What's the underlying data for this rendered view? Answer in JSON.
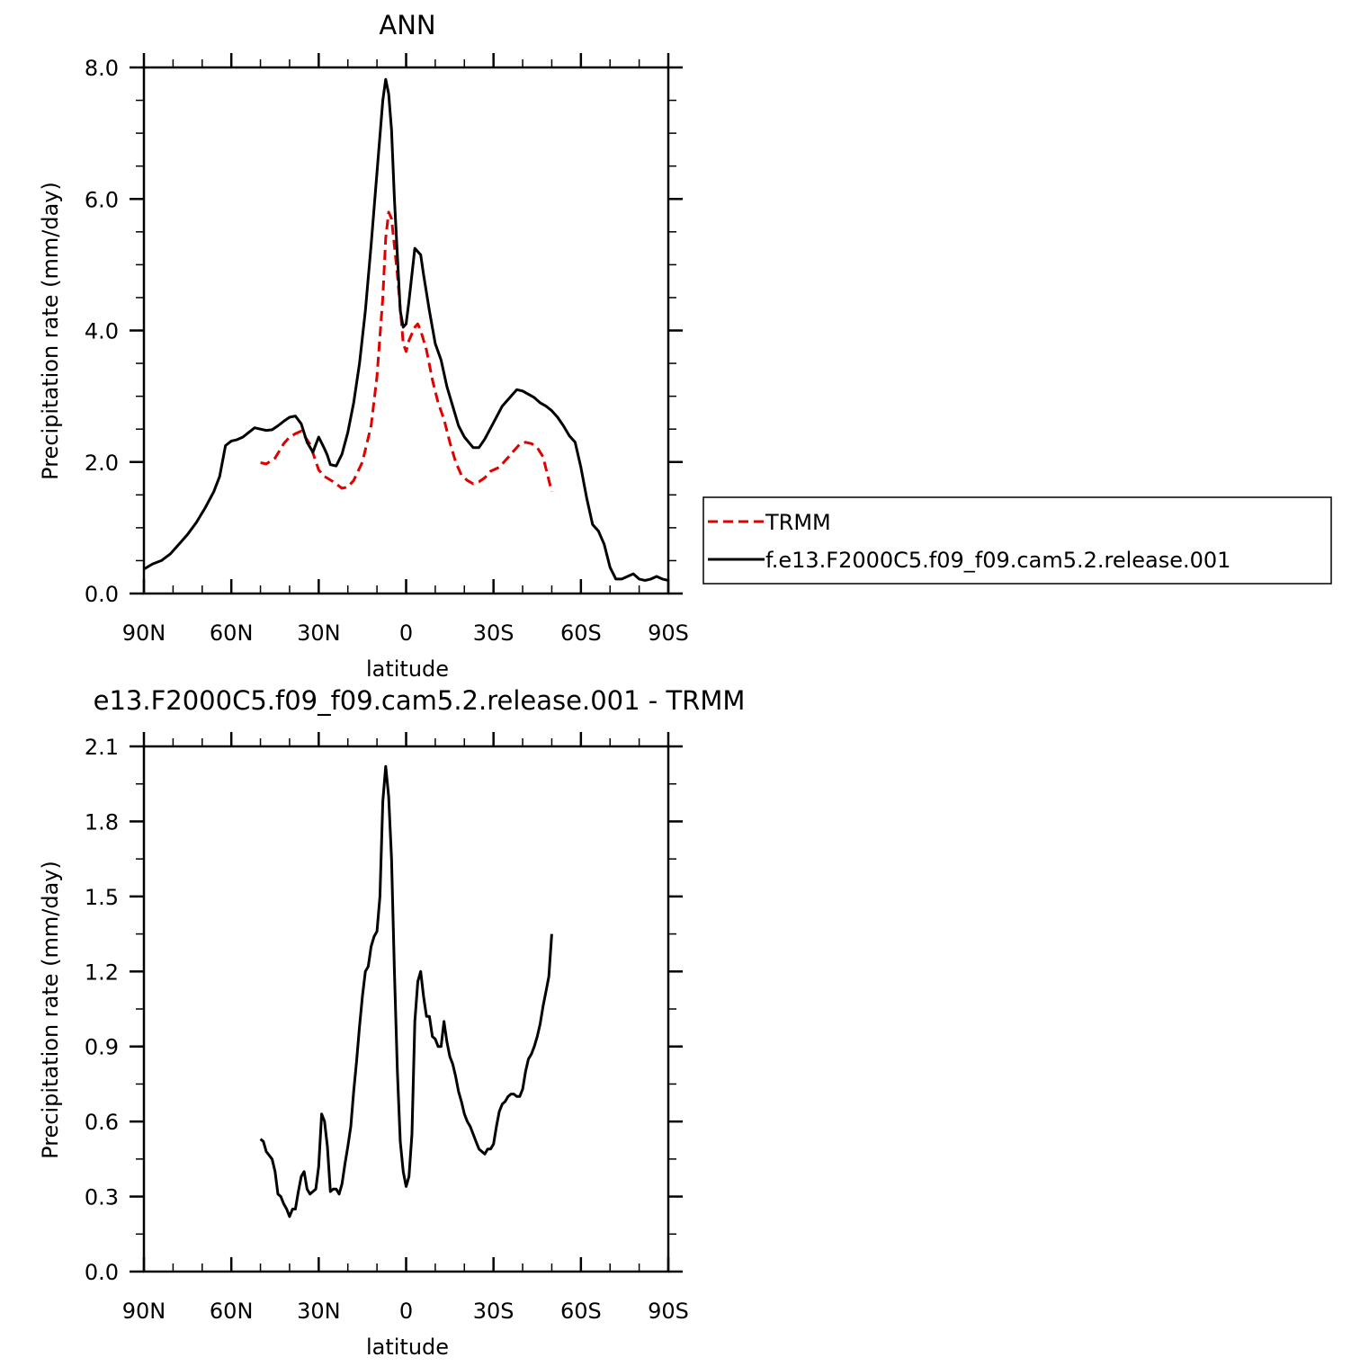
{
  "chart_data": [
    {
      "type": "line",
      "title": "ANN",
      "xlabel": "latitude",
      "ylabel": "Precipitation rate (mm/day)",
      "xlim": [
        90,
        -90
      ],
      "ylim": [
        0,
        8
      ],
      "x_ticks": [
        90,
        60,
        30,
        0,
        -30,
        -60,
        -90
      ],
      "x_tick_labels": [
        "90N",
        "60N",
        "30N",
        "0",
        "30S",
        "60S",
        "90S"
      ],
      "y_ticks": [
        0,
        2,
        4,
        6,
        8
      ],
      "y_tick_labels": [
        "0.0",
        "2.0",
        "4.0",
        "6.0",
        "8.0"
      ],
      "legend_position": "right",
      "series": [
        {
          "name": "TRMM",
          "color": "#e00000",
          "dash": true,
          "x": [
            50,
            48,
            45,
            42,
            40,
            38,
            36,
            33,
            30,
            28,
            25,
            22,
            20,
            18,
            15,
            12,
            10,
            8,
            7,
            6,
            5,
            3,
            1,
            0,
            -1,
            -3,
            -4,
            -5,
            -7,
            -9,
            -11,
            -13,
            -15,
            -17,
            -19,
            -21,
            -23,
            -25,
            -27,
            -29,
            -32,
            -35,
            -37,
            -39,
            -41,
            -43,
            -45,
            -47,
            -48,
            -50
          ],
          "y": [
            1.99,
            1.97,
            2.06,
            2.28,
            2.38,
            2.43,
            2.47,
            2.27,
            1.88,
            1.78,
            1.7,
            1.6,
            1.62,
            1.72,
            2.0,
            2.55,
            3.3,
            4.5,
            5.4,
            5.8,
            5.7,
            4.85,
            3.8,
            3.68,
            3.85,
            4.05,
            4.1,
            4.0,
            3.7,
            3.25,
            2.9,
            2.65,
            2.3,
            2.0,
            1.8,
            1.72,
            1.67,
            1.7,
            1.76,
            1.86,
            1.92,
            2.07,
            2.17,
            2.27,
            2.3,
            2.28,
            2.22,
            2.08,
            1.9,
            1.55
          ]
        },
        {
          "name": "f.e13.F2000C5.f09_f09.cam5.2.release.001",
          "color": "#000000",
          "dash": false,
          "x": [
            90,
            87,
            84,
            81,
            78,
            75,
            72,
            69,
            66,
            64,
            62,
            60,
            58,
            56,
            54,
            52,
            50,
            48,
            46,
            44,
            42,
            40,
            38,
            36,
            34,
            32,
            30,
            28,
            27,
            26,
            24,
            22,
            20,
            18,
            16,
            14,
            12,
            10,
            8,
            7,
            6,
            5,
            4,
            2,
            1,
            0,
            -1,
            -3,
            -5,
            -6,
            -8,
            -10,
            -12,
            -14,
            -16,
            -18,
            -20,
            -23,
            -25,
            -27,
            -30,
            -33,
            -36,
            -38,
            -40,
            -42,
            -44,
            -46,
            -48,
            -50,
            -52,
            -54,
            -56,
            -58,
            -60,
            -62,
            -64,
            -66,
            -68,
            -70,
            -72,
            -74,
            -76,
            -78,
            -80,
            -82,
            -84,
            -86,
            -88,
            -90
          ],
          "y": [
            0.37,
            0.45,
            0.5,
            0.6,
            0.75,
            0.9,
            1.08,
            1.3,
            1.55,
            1.78,
            2.25,
            2.32,
            2.34,
            2.38,
            2.45,
            2.52,
            2.5,
            2.48,
            2.49,
            2.55,
            2.62,
            2.68,
            2.7,
            2.58,
            2.3,
            2.15,
            2.38,
            2.2,
            2.1,
            1.96,
            1.94,
            2.12,
            2.45,
            2.9,
            3.5,
            4.3,
            5.3,
            6.4,
            7.5,
            7.82,
            7.6,
            7.05,
            6.0,
            4.3,
            4.05,
            4.1,
            4.45,
            5.25,
            5.15,
            4.85,
            4.3,
            3.8,
            3.55,
            3.15,
            2.85,
            2.55,
            2.38,
            2.22,
            2.22,
            2.35,
            2.6,
            2.85,
            3.0,
            3.1,
            3.08,
            3.03,
            2.98,
            2.9,
            2.85,
            2.78,
            2.68,
            2.55,
            2.4,
            2.3,
            1.92,
            1.45,
            1.05,
            0.95,
            0.75,
            0.4,
            0.22,
            0.22,
            0.26,
            0.3,
            0.22,
            0.2,
            0.22,
            0.26,
            0.22,
            0.2
          ]
        }
      ]
    },
    {
      "type": "line",
      "title": "e13.F2000C5.f09_f09.cam5.2.release.001 - TRMM",
      "xlabel": "latitude",
      "ylabel": "Precipitation rate (mm/day)",
      "xlim": [
        90,
        -90
      ],
      "ylim": [
        0,
        2.1
      ],
      "x_ticks": [
        90,
        60,
        30,
        0,
        -30,
        -60,
        -90
      ],
      "x_tick_labels": [
        "90N",
        "60N",
        "30N",
        "0",
        "30S",
        "60S",
        "90S"
      ],
      "y_ticks": [
        0,
        0.3,
        0.6,
        0.9,
        1.2,
        1.5,
        1.8,
        2.1
      ],
      "y_tick_labels": [
        "0.0",
        "0.3",
        "0.6",
        "0.9",
        "1.2",
        "1.5",
        "1.8",
        "2.1"
      ],
      "series": [
        {
          "color": "#000000",
          "dash": false,
          "x": [
            50,
            49,
            48,
            46,
            45,
            44,
            43,
            42,
            41,
            40,
            39,
            38,
            37,
            36,
            35,
            34,
            33,
            32,
            31,
            30,
            29,
            28,
            27,
            26,
            25,
            24,
            23,
            22,
            21,
            20,
            19,
            18,
            17,
            16,
            15,
            14,
            13,
            12,
            11,
            10,
            9,
            8,
            7,
            6,
            5,
            4,
            3,
            2,
            1,
            0,
            -1,
            -2,
            -3,
            -4,
            -5,
            -6,
            -7,
            -8,
            -9,
            -10,
            -11,
            -12,
            -13,
            -14,
            -15,
            -16,
            -17,
            -18,
            -19,
            -20,
            -21,
            -22,
            -23,
            -24,
            -25,
            -26,
            -27,
            -28,
            -29,
            -30,
            -31,
            -32,
            -33,
            -34,
            -35,
            -36,
            -37,
            -38,
            -39,
            -40,
            -41,
            -42,
            -43,
            -44,
            -45,
            -46,
            -47,
            -48,
            -49,
            -50
          ],
          "y": [
            0.53,
            0.52,
            0.48,
            0.45,
            0.4,
            0.31,
            0.3,
            0.27,
            0.25,
            0.22,
            0.25,
            0.25,
            0.32,
            0.38,
            0.4,
            0.33,
            0.31,
            0.32,
            0.33,
            0.42,
            0.63,
            0.6,
            0.5,
            0.32,
            0.33,
            0.33,
            0.31,
            0.35,
            0.43,
            0.5,
            0.58,
            0.72,
            0.84,
            0.98,
            1.1,
            1.2,
            1.22,
            1.3,
            1.34,
            1.36,
            1.5,
            1.88,
            2.02,
            1.9,
            1.65,
            1.2,
            0.8,
            0.52,
            0.4,
            0.34,
            0.38,
            0.55,
            1.0,
            1.16,
            1.2,
            1.1,
            1.02,
            1.02,
            0.94,
            0.93,
            0.9,
            0.9,
            1.0,
            0.92,
            0.86,
            0.83,
            0.78,
            0.72,
            0.68,
            0.63,
            0.6,
            0.58,
            0.55,
            0.52,
            0.49,
            0.48,
            0.47,
            0.49,
            0.49,
            0.51,
            0.58,
            0.64,
            0.67,
            0.68,
            0.7,
            0.71,
            0.71,
            0.7,
            0.7,
            0.73,
            0.8,
            0.85,
            0.87,
            0.9,
            0.94,
            0.99,
            1.06,
            1.12,
            1.18,
            1.35
          ]
        }
      ]
    }
  ]
}
